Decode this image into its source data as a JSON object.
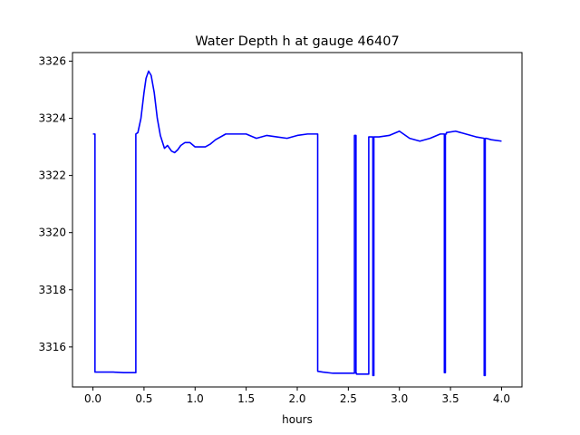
{
  "chart_data": {
    "type": "line",
    "title": "Water Depth h at gauge 46407",
    "xlabel": "hours",
    "ylabel": "",
    "xlim": [
      -0.2,
      4.2
    ],
    "ylim": [
      3314.6,
      3326.3
    ],
    "xticks": [
      0.0,
      0.5,
      1.0,
      1.5,
      2.0,
      2.5,
      3.0,
      3.5,
      4.0
    ],
    "xtick_labels": [
      "0.0",
      "0.5",
      "1.0",
      "1.5",
      "2.0",
      "2.5",
      "3.0",
      "3.5",
      "4.0"
    ],
    "yticks": [
      3316,
      3318,
      3320,
      3322,
      3324,
      3326
    ],
    "ytick_labels": [
      "3316",
      "3318",
      "3320",
      "3322",
      "3324",
      "3326"
    ],
    "grid": false,
    "series": [
      {
        "color": "#0000ff",
        "x": [
          0.0,
          0.02,
          0.02,
          0.1,
          0.2,
          0.3,
          0.41,
          0.42,
          0.42,
          0.44,
          0.47,
          0.5,
          0.52,
          0.545,
          0.57,
          0.6,
          0.63,
          0.66,
          0.7,
          0.73,
          0.77,
          0.8,
          0.83,
          0.86,
          0.9,
          0.95,
          1.0,
          1.05,
          1.1,
          1.15,
          1.2,
          1.3,
          1.4,
          1.5,
          1.6,
          1.7,
          1.8,
          1.9,
          2.0,
          2.1,
          2.2,
          2.2,
          2.25,
          2.35,
          2.45,
          2.55,
          2.56,
          2.56,
          2.575,
          2.575,
          2.58,
          2.58,
          2.7,
          2.7,
          2.74,
          2.74,
          2.75,
          2.75,
          2.76,
          2.76,
          2.8,
          2.9,
          3.0,
          3.1,
          3.2,
          3.3,
          3.4,
          3.44,
          3.44,
          3.45,
          3.45,
          3.46,
          3.46,
          3.55,
          3.65,
          3.75,
          3.83,
          3.83,
          3.84,
          3.84,
          3.85,
          3.85,
          3.9,
          4.0
        ],
        "y": [
          3323.45,
          3323.45,
          3315.12,
          3315.12,
          3315.12,
          3315.1,
          3315.1,
          3315.1,
          3323.45,
          3323.5,
          3324.0,
          3324.9,
          3325.4,
          3325.65,
          3325.5,
          3324.9,
          3324.0,
          3323.4,
          3322.95,
          3323.05,
          3322.85,
          3322.8,
          3322.9,
          3323.05,
          3323.15,
          3323.15,
          3323.0,
          3323.0,
          3323.0,
          3323.1,
          3323.25,
          3323.45,
          3323.45,
          3323.45,
          3323.3,
          3323.4,
          3323.35,
          3323.3,
          3323.4,
          3323.45,
          3323.45,
          3315.15,
          3315.12,
          3315.08,
          3315.08,
          3315.08,
          3315.08,
          3323.4,
          3323.4,
          3315.08,
          3315.08,
          3315.05,
          3315.05,
          3323.35,
          3323.35,
          3315.0,
          3315.0,
          3323.35,
          3323.35,
          3323.35,
          3323.35,
          3323.4,
          3323.55,
          3323.3,
          3323.2,
          3323.3,
          3323.45,
          3323.45,
          3315.1,
          3315.1,
          3323.45,
          3323.45,
          3323.5,
          3323.55,
          3323.45,
          3323.35,
          3323.3,
          3315.0,
          3315.0,
          3323.3,
          3323.3,
          3323.3,
          3323.25,
          3323.2
        ]
      }
    ]
  }
}
